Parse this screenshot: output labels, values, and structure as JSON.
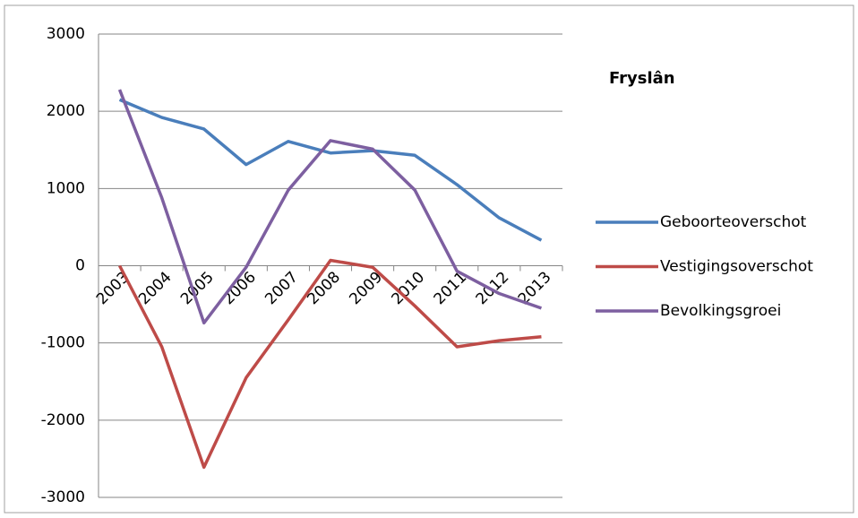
{
  "chart_data": {
    "type": "line",
    "title": "Fryslân",
    "categories": [
      "2003",
      "2004",
      "2005",
      "2006",
      "2007",
      "2008",
      "2009",
      "2010",
      "2011",
      "2012",
      "2013"
    ],
    "series": [
      {
        "name": "Geboorteoverschot",
        "color": "#4a7ebb",
        "values": [
          2150,
          1920,
          1770,
          1310,
          1610,
          1460,
          1490,
          1430,
          1050,
          620,
          330
        ]
      },
      {
        "name": "Vestigingsoverschot",
        "color": "#be4b48",
        "values": [
          0,
          -1050,
          -2610,
          -1450,
          -700,
          70,
          -20,
          -520,
          -1050,
          -970,
          -920
        ]
      },
      {
        "name": "Bevolkingsgroei",
        "color": "#7d5fa0",
        "values": [
          2280,
          880,
          -740,
          -20,
          980,
          1620,
          1510,
          980,
          -70,
          -360,
          -550
        ]
      }
    ],
    "ylim": [
      -3000,
      3000
    ],
    "yticks": [
      -3000,
      -2000,
      -1000,
      0,
      1000,
      2000,
      3000
    ],
    "grid": true,
    "legend": "right"
  }
}
